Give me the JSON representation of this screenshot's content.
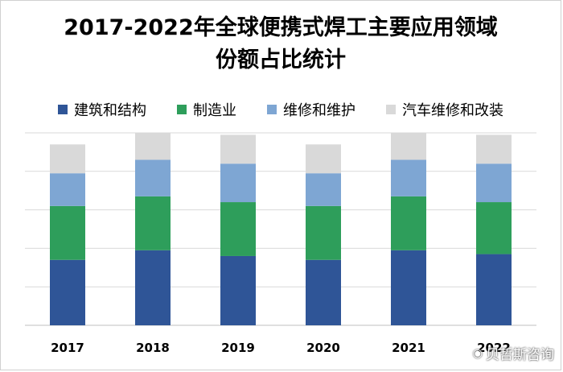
{
  "chart_data": {
    "type": "bar",
    "stacked": true,
    "title": "2017-2022年全球便携式焊工主要应用领域份额占比统计",
    "title_lines": [
      "2017-2022年全球便携式焊工主要应用领域",
      "份额占比统计"
    ],
    "categories": [
      "2017",
      "2018",
      "2019",
      "2020",
      "2021",
      "2022"
    ],
    "series": [
      {
        "name": "建筑和结构",
        "color": "#2f5597",
        "values": [
          0.34,
          0.39,
          0.36,
          0.34,
          0.39,
          0.37
        ]
      },
      {
        "name": "制造业",
        "color": "#2e9e5b",
        "values": [
          0.28,
          0.28,
          0.28,
          0.28,
          0.28,
          0.27
        ]
      },
      {
        "name": "维修和维护",
        "color": "#7ea6d3",
        "values": [
          0.17,
          0.19,
          0.2,
          0.17,
          0.19,
          0.2
        ]
      },
      {
        "name": "汽车维修和改装",
        "color": "#d9d9d9",
        "values": [
          0.15,
          0.14,
          0.15,
          0.15,
          0.14,
          0.15
        ]
      }
    ],
    "ylim": [
      0,
      1
    ],
    "grid": true,
    "legend_position": "top"
  },
  "watermark": {
    "icon": "weibo-icon",
    "text": "贝哲斯咨询"
  }
}
